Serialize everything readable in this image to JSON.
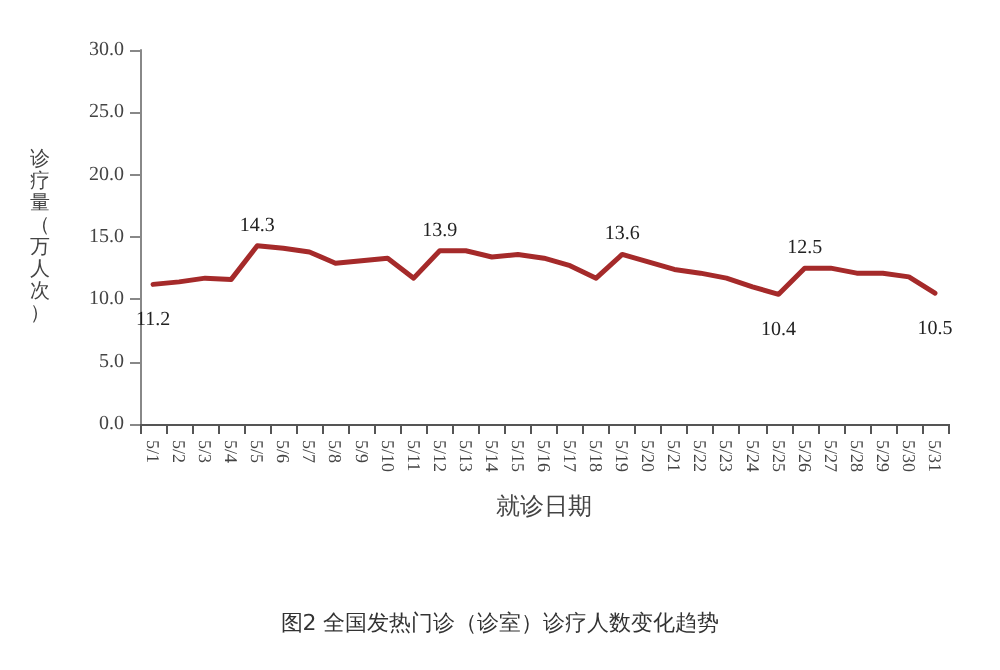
{
  "chart_data": {
    "type": "line",
    "xlabel": "就诊日期",
    "ylabel": "诊疗量（万人次）",
    "annotations": [
      "图2 全国发热门诊（诊室）诊疗人数变化趋势"
    ],
    "categories": [
      "5/1",
      "5/2",
      "5/3",
      "5/4",
      "5/5",
      "5/6",
      "5/7",
      "5/8",
      "5/9",
      "5/10",
      "5/11",
      "5/12",
      "5/13",
      "5/14",
      "5/15",
      "5/16",
      "5/17",
      "5/18",
      "5/19",
      "5/20",
      "5/21",
      "5/22",
      "5/23",
      "5/24",
      "5/25",
      "5/26",
      "5/27",
      "5/28",
      "5/29",
      "5/30",
      "5/31"
    ],
    "series": [
      {
        "color": "#a52a2a",
        "values": [
          11.2,
          11.4,
          11.7,
          11.6,
          14.3,
          14.1,
          13.8,
          12.9,
          13.1,
          13.3,
          11.7,
          13.9,
          13.9,
          13.4,
          13.6,
          13.3,
          12.7,
          11.7,
          13.6,
          13.0,
          12.4,
          12.1,
          11.7,
          11.0,
          10.4,
          12.5,
          12.5,
          12.1,
          12.1,
          11.8,
          10.5
        ],
        "value_labels": [
          "11.2",
          null,
          null,
          null,
          "14.3",
          null,
          null,
          null,
          null,
          null,
          null,
          "13.9",
          null,
          null,
          null,
          null,
          null,
          null,
          "13.6",
          null,
          null,
          null,
          null,
          null,
          "10.4",
          "12.5",
          null,
          null,
          null,
          null,
          "10.5"
        ]
      }
    ],
    "ylim": [
      0,
      30
    ],
    "yticks": [
      {
        "value": 0,
        "label": "0.0"
      },
      {
        "value": 5,
        "label": "5.0"
      },
      {
        "value": 10,
        "label": "10.0"
      },
      {
        "value": 15,
        "label": "15.0"
      },
      {
        "value": 20,
        "label": "20.0"
      },
      {
        "value": 25,
        "label": "25.0"
      },
      {
        "value": 30,
        "label": "30.0"
      }
    ],
    "grid": false,
    "marker": "none",
    "line_style": "solid"
  }
}
